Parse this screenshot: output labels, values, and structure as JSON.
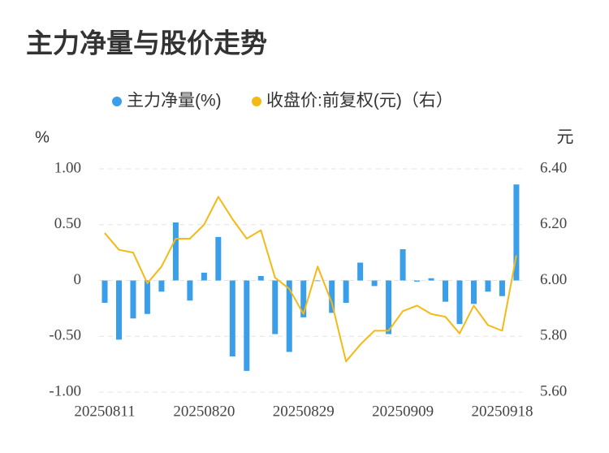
{
  "chart_data": {
    "type": "bar-line",
    "title": "主力净量与股价走势",
    "y_label": "%",
    "y2_label": "元",
    "categories": [
      "20250811",
      null,
      null,
      null,
      null,
      null,
      null,
      "20250820",
      null,
      null,
      null,
      null,
      null,
      null,
      "20250829",
      null,
      null,
      null,
      null,
      null,
      null,
      "20250909",
      null,
      null,
      null,
      null,
      null,
      null,
      "20250918",
      null
    ],
    "series": [
      {
        "name": "主力净量(%)",
        "type": "bar",
        "color": "#3a9ee8",
        "axis": "y",
        "values": [
          -0.2,
          -0.53,
          -0.34,
          -0.3,
          -0.1,
          0.52,
          -0.18,
          0.07,
          0.39,
          -0.68,
          -0.81,
          0.04,
          -0.48,
          -0.64,
          -0.33,
          0.0,
          -0.29,
          -0.2,
          0.16,
          -0.05,
          -0.48,
          0.28,
          -0.01,
          0.02,
          -0.19,
          -0.39,
          -0.21,
          -0.1,
          -0.14,
          0.86
        ]
      },
      {
        "name": "收盘价:前复权(元)（右）",
        "type": "line",
        "color": "#f5b915",
        "axis": "y2",
        "values": [
          6.17,
          6.11,
          6.1,
          5.99,
          6.05,
          6.15,
          6.15,
          6.2,
          6.3,
          6.22,
          6.15,
          6.18,
          6.01,
          5.97,
          5.88,
          6.05,
          5.92,
          5.71,
          5.77,
          5.82,
          5.82,
          5.89,
          5.91,
          5.88,
          5.87,
          5.81,
          5.91,
          5.84,
          5.82,
          6.09
        ]
      }
    ],
    "ylim": [
      -1,
      1
    ],
    "yticks": [
      {
        "value": 1,
        "label": "1.00"
      },
      {
        "value": 0.5,
        "label": "0.50"
      },
      0,
      {
        "value": -0.5,
        "label": "-0.50"
      },
      {
        "value": -1,
        "label": "-1.00"
      }
    ],
    "y2lim": [
      5.6,
      6.4
    ],
    "y2ticks": [
      {
        "value": 6.4,
        "label": "6.40"
      },
      {
        "value": 6.2,
        "label": "6.20"
      },
      {
        "value": 6.0,
        "label": "6.00"
      },
      {
        "value": 5.8,
        "label": "5.80"
      },
      {
        "value": 5.6,
        "label": "5.60"
      }
    ],
    "grid": true,
    "legend": "top"
  }
}
